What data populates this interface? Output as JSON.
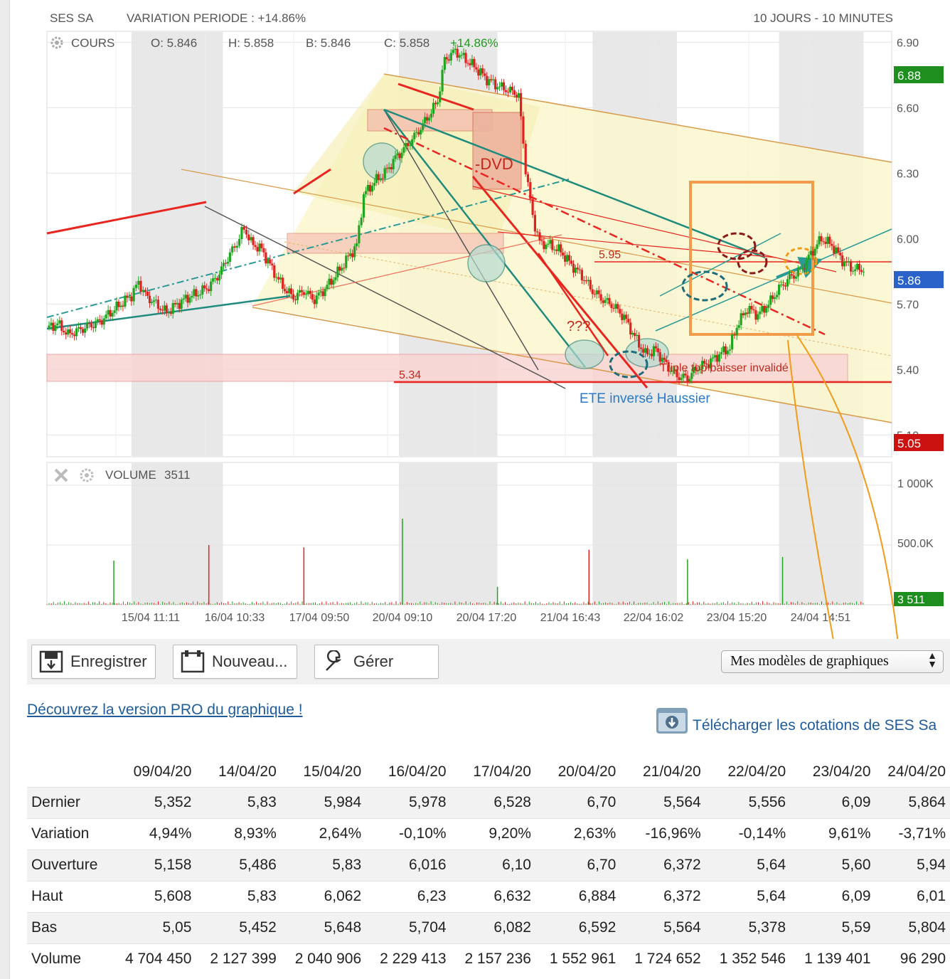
{
  "header": {
    "name": "SES SA",
    "variation": "VARIATION PERIODE : +14.86%",
    "period": "10 JOURS - 10 MINUTES"
  },
  "price_panel": {
    "label": "COURS",
    "open": "O: 5.846",
    "high": "H: 5.858",
    "low": "B: 5.846",
    "close": "C: 5.858",
    "change": "+14.86%"
  },
  "volume_panel": {
    "label": "VOLUME",
    "value": "3511"
  },
  "badges": {
    "high": "6.88",
    "current": "5.86",
    "low": "5.05",
    "volume": "3 511"
  },
  "annotations": {
    "dvd": "-DVD",
    "level_595": "5.95",
    "level_534": "5.34",
    "question": "???",
    "ete": "ETE inversé Haussier",
    "triple_top": "Triple top baisser invalidé"
  },
  "colors": {
    "up": "#1fa51f",
    "down": "#e0221e",
    "badge_high": "#1e8f1e",
    "badge_current": "#2a62c9",
    "badge_low": "#cc1111",
    "annotation_box": "#f2994a",
    "link": "#1f5c99"
  },
  "chart_data": {
    "type": "candlestick",
    "title": "SES SA",
    "price_axis": {
      "ticks": [
        "6.90",
        "6.60",
        "6.30",
        "6.00",
        "5.70",
        "5.40",
        "5.10"
      ],
      "range": [
        5.0,
        6.95
      ]
    },
    "volume_axis": {
      "ticks": [
        "1 000K",
        "500.0K"
      ],
      "range": [
        0,
        1000000
      ]
    },
    "x_tick_labels": [
      "15/04 11:11",
      "16/04 10:33",
      "17/04 09:50",
      "20/04 09:10",
      "20/04 17:20",
      "21/04 16:43",
      "22/04 16:02",
      "23/04 15:20",
      "24/04 14:51"
    ],
    "price_path": [
      [
        0,
        5.59
      ],
      [
        3,
        5.61
      ],
      [
        6,
        5.56
      ],
      [
        9,
        5.58
      ],
      [
        12,
        5.6
      ],
      [
        15,
        5.62
      ],
      [
        18,
        5.66
      ],
      [
        21,
        5.7
      ],
      [
        24,
        5.74
      ],
      [
        26,
        5.8
      ],
      [
        28,
        5.74
      ],
      [
        31,
        5.7
      ],
      [
        34,
        5.66
      ],
      [
        37,
        5.7
      ],
      [
        40,
        5.73
      ],
      [
        43,
        5.75
      ],
      [
        46,
        5.78
      ],
      [
        49,
        5.84
      ],
      [
        52,
        5.93
      ],
      [
        54,
        5.98
      ],
      [
        56,
        6.05
      ],
      [
        58,
        5.98
      ],
      [
        61,
        5.95
      ],
      [
        64,
        5.86
      ],
      [
        67,
        5.78
      ],
      [
        70,
        5.73
      ],
      [
        73,
        5.76
      ],
      [
        76,
        5.72
      ],
      [
        79,
        5.77
      ],
      [
        82,
        5.83
      ],
      [
        85,
        5.9
      ],
      [
        88,
        5.97
      ],
      [
        90,
        6.2
      ],
      [
        93,
        6.26
      ],
      [
        96,
        6.3
      ],
      [
        99,
        6.37
      ],
      [
        102,
        6.42
      ],
      [
        105,
        6.48
      ],
      [
        108,
        6.55
      ],
      [
        111,
        6.63
      ],
      [
        113,
        6.82
      ],
      [
        116,
        6.86
      ],
      [
        119,
        6.82
      ],
      [
        122,
        6.78
      ],
      [
        125,
        6.73
      ],
      [
        128,
        6.7
      ],
      [
        131,
        6.68
      ],
      [
        134,
        6.66
      ],
      [
        136,
        6.32
      ],
      [
        138,
        6.1
      ],
      [
        140,
        5.98
      ],
      [
        143,
        5.97
      ],
      [
        146,
        5.94
      ],
      [
        149,
        5.88
      ],
      [
        152,
        5.83
      ],
      [
        155,
        5.76
      ],
      [
        158,
        5.72
      ],
      [
        161,
        5.69
      ],
      [
        164,
        5.64
      ],
      [
        167,
        5.55
      ],
      [
        170,
        5.47
      ],
      [
        173,
        5.49
      ],
      [
        176,
        5.42
      ],
      [
        179,
        5.37
      ],
      [
        182,
        5.36
      ],
      [
        185,
        5.41
      ],
      [
        188,
        5.43
      ],
      [
        191,
        5.47
      ],
      [
        194,
        5.5
      ],
      [
        196,
        5.6
      ],
      [
        199,
        5.68
      ],
      [
        202,
        5.65
      ],
      [
        205,
        5.7
      ],
      [
        208,
        5.77
      ],
      [
        211,
        5.82
      ],
      [
        214,
        5.85
      ],
      [
        217,
        5.93
      ],
      [
        220,
        6.0
      ],
      [
        223,
        5.97
      ],
      [
        226,
        5.9
      ],
      [
        229,
        5.86
      ],
      [
        232,
        5.86
      ]
    ],
    "volume_spikes": [
      {
        "x": 19,
        "v": 370000,
        "dir": "up"
      },
      {
        "x": 46,
        "v": 500000,
        "dir": "down"
      },
      {
        "x": 73,
        "v": 480000,
        "dir": "down"
      },
      {
        "x": 101,
        "v": 720000,
        "dir": "up"
      },
      {
        "x": 128,
        "v": 150000,
        "dir": "up"
      },
      {
        "x": 154,
        "v": 460000,
        "dir": "down"
      },
      {
        "x": 182,
        "v": 380000,
        "dir": "up"
      },
      {
        "x": 209,
        "v": 400000,
        "dir": "up"
      }
    ],
    "x_range": [
      0,
      240
    ]
  },
  "toolbar": {
    "save": "Enregistrer",
    "new": "Nouveau...",
    "manage": "Gérer",
    "models": "Mes modèles de graphiques"
  },
  "links": {
    "pro": "Découvrez la version PRO du graphique !",
    "download": "Télécharger les cotations de SES Sa"
  },
  "table": {
    "dates": [
      "09/04/20",
      "14/04/20",
      "15/04/20",
      "16/04/20",
      "17/04/20",
      "20/04/20",
      "21/04/20",
      "22/04/20",
      "23/04/20",
      "24/04/20"
    ],
    "rows": [
      {
        "label": "Dernier",
        "cells": [
          "5,352",
          "5,83",
          "5,984",
          "5,978",
          "6,528",
          "6,70",
          "5,564",
          "5,556",
          "6,09",
          "5,864"
        ]
      },
      {
        "label": "Variation",
        "cells": [
          "4,94%",
          "8,93%",
          "2,64%",
          "-0,10%",
          "9,20%",
          "2,63%",
          "-16,96%",
          "-0,14%",
          "9,61%",
          "-3,71%"
        ]
      },
      {
        "label": "Ouverture",
        "cells": [
          "5,158",
          "5,486",
          "5,83",
          "6,016",
          "6,10",
          "6,70",
          "6,372",
          "5,64",
          "5,60",
          "5,94"
        ]
      },
      {
        "label": "Haut",
        "cells": [
          "5,608",
          "5,83",
          "6,062",
          "6,23",
          "6,632",
          "6,884",
          "6,372",
          "5,64",
          "6,09",
          "6,01"
        ]
      },
      {
        "label": "Bas",
        "cells": [
          "5,05",
          "5,452",
          "5,648",
          "5,704",
          "6,082",
          "6,592",
          "5,564",
          "5,378",
          "5,59",
          "5,804"
        ]
      },
      {
        "label": "Volume",
        "cells": [
          "4 704 450",
          "2 127 399",
          "2 040 906",
          "2 229 413",
          "2 157 236",
          "1 552 961",
          "1 724 652",
          "1 352 546",
          "1 139 401",
          "96 290"
        ]
      }
    ]
  }
}
